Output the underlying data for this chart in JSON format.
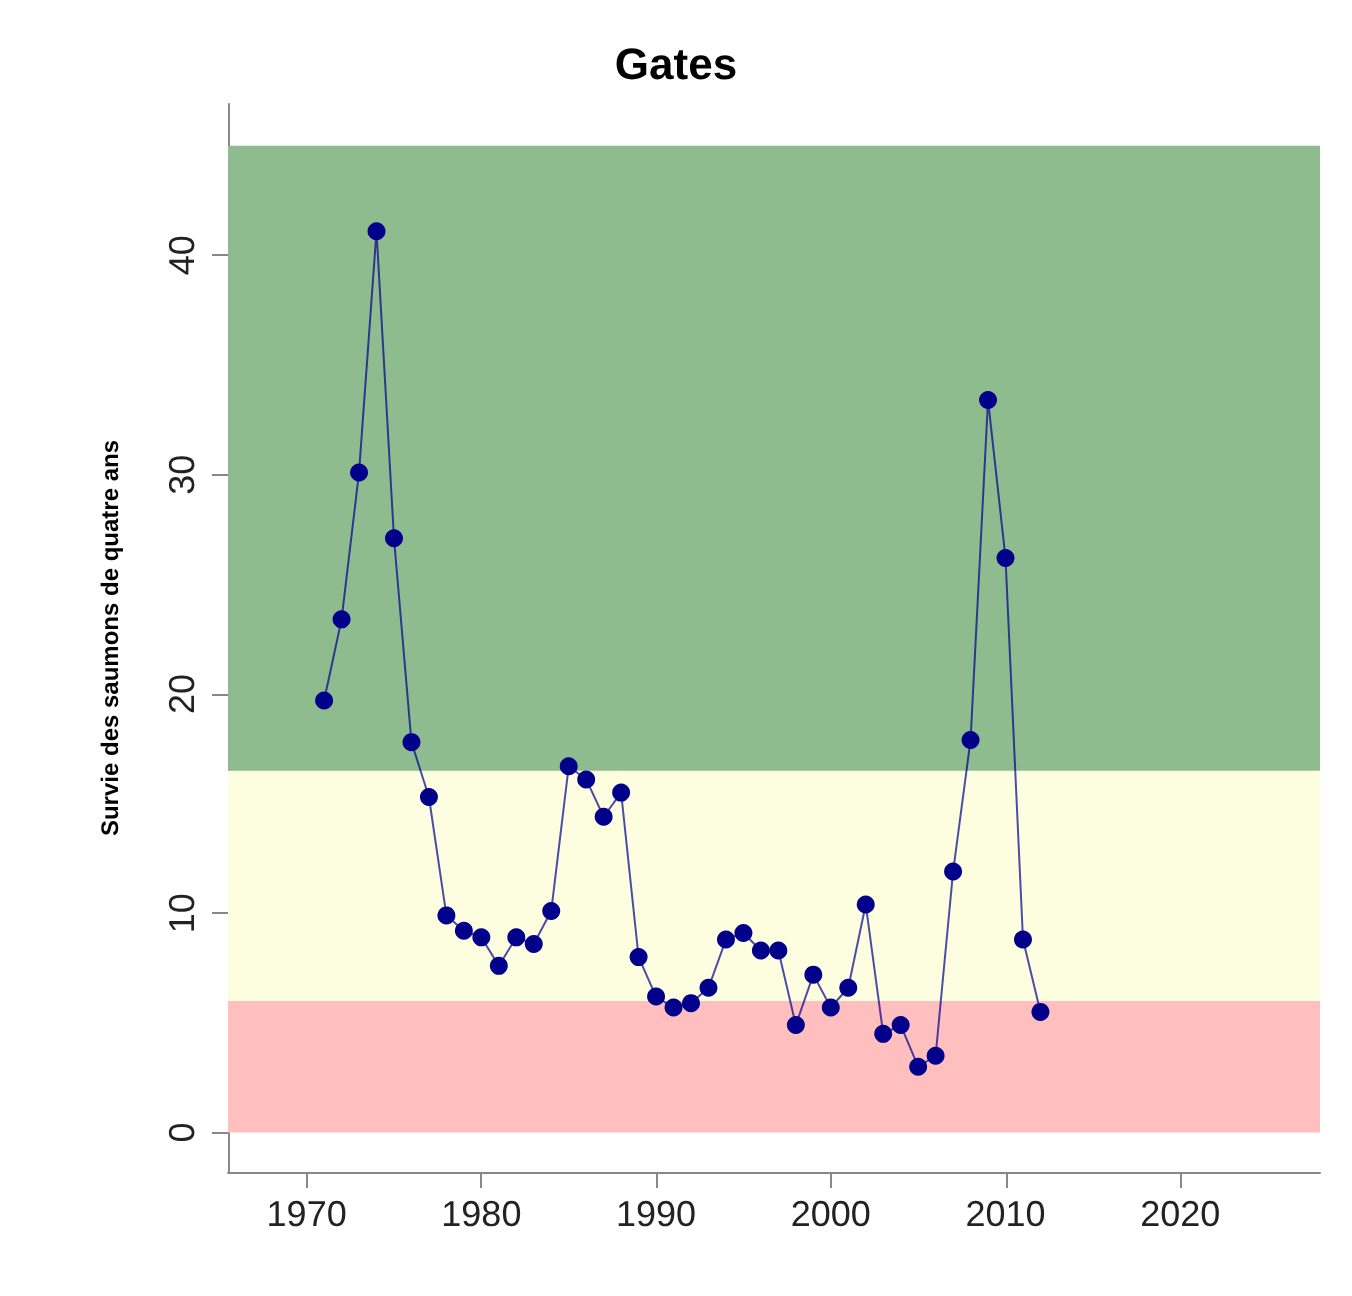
{
  "chart_data": {
    "type": "line",
    "title": "Gates",
    "ylabel": "Survie des saumons de quatre ans",
    "x": [
      1971,
      1972,
      1973,
      1974,
      1975,
      1976,
      1977,
      1978,
      1979,
      1980,
      1981,
      1982,
      1983,
      1984,
      1985,
      1986,
      1987,
      1988,
      1989,
      1990,
      1991,
      1992,
      1993,
      1994,
      1995,
      1996,
      1997,
      1998,
      1999,
      2000,
      2001,
      2002,
      2003,
      2004,
      2005,
      2006,
      2007,
      2008,
      2009,
      2010,
      2011,
      2012
    ],
    "series": [
      {
        "color": "#00008b",
        "values": [
          19.7,
          23.4,
          30.1,
          41.1,
          27.1,
          17.8,
          15.3,
          9.9,
          9.2,
          8.9,
          7.6,
          8.9,
          8.6,
          10.1,
          16.7,
          16.1,
          14.4,
          15.5,
          8.0,
          6.2,
          5.7,
          5.9,
          6.6,
          8.8,
          9.1,
          8.3,
          8.3,
          4.9,
          7.2,
          5.7,
          6.6,
          10.4,
          4.5,
          4.9,
          3.0,
          3.5,
          11.9,
          17.9,
          33.4,
          26.2,
          8.8,
          5.5
        ]
      }
    ],
    "xlim": [
      1965.5,
      2028
    ],
    "xticks": [
      1970,
      1980,
      1990,
      2000,
      2010,
      2020
    ],
    "ylim": [
      -1.8,
      46.9
    ],
    "yticks": [
      0,
      10,
      20,
      30,
      40
    ],
    "bands": [
      {
        "axis": "y",
        "from": 0,
        "to": 6,
        "color": "#ffbfbf"
      },
      {
        "axis": "y",
        "from": 6,
        "to": 16.5,
        "color": "#fdfde0"
      },
      {
        "axis": "y",
        "from": 16.5,
        "to": 45,
        "color": "#8fbc8f"
      }
    ],
    "grid": false,
    "marker": "circle",
    "line_style": "solid"
  }
}
